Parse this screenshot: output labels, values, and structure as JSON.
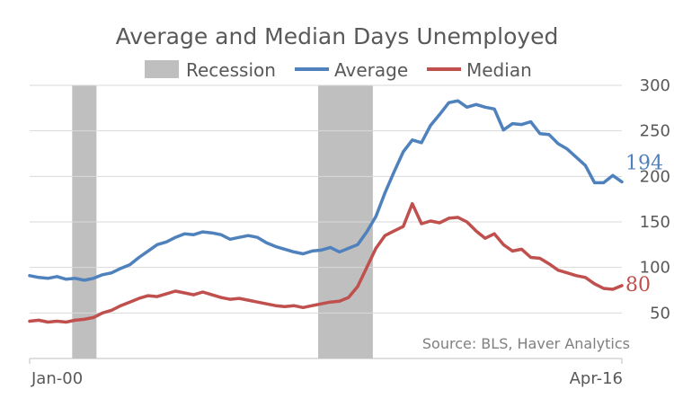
{
  "chart_data": {
    "type": "line",
    "title": "Average and Median Days Unemployed",
    "xlabel": "",
    "ylabel": "",
    "source": "Source: BLS, Haver Analytics",
    "x_range": [
      "2000-01",
      "2016-04"
    ],
    "x_tick_labels": [
      "Jan-00",
      "Apr-16"
    ],
    "ylim": [
      0,
      300
    ],
    "y_ticks": [
      "50",
      "100",
      "150",
      "200",
      "250",
      "300"
    ],
    "y_axis_position": "right",
    "grid": true,
    "legend": {
      "placement": "top",
      "entries": [
        "Recession",
        "Average",
        "Median"
      ]
    },
    "recessions": [
      {
        "start": "2001-03",
        "end": "2001-11"
      },
      {
        "start": "2007-12",
        "end": "2009-06"
      }
    ],
    "series": [
      {
        "name": "Average",
        "color": "#4f81bd",
        "end_label": "194",
        "points": [
          [
            "2000-01",
            91
          ],
          [
            "2000-04",
            89
          ],
          [
            "2000-07",
            88
          ],
          [
            "2000-10",
            90
          ],
          [
            "2001-01",
            87
          ],
          [
            "2001-04",
            88
          ],
          [
            "2001-07",
            86
          ],
          [
            "2001-10",
            88
          ],
          [
            "2002-01",
            92
          ],
          [
            "2002-04",
            94
          ],
          [
            "2002-07",
            99
          ],
          [
            "2002-10",
            103
          ],
          [
            "2003-01",
            111
          ],
          [
            "2003-04",
            118
          ],
          [
            "2003-07",
            125
          ],
          [
            "2003-10",
            128
          ],
          [
            "2004-01",
            133
          ],
          [
            "2004-04",
            137
          ],
          [
            "2004-07",
            136
          ],
          [
            "2004-10",
            139
          ],
          [
            "2005-01",
            138
          ],
          [
            "2005-04",
            136
          ],
          [
            "2005-07",
            131
          ],
          [
            "2005-10",
            133
          ],
          [
            "2006-01",
            135
          ],
          [
            "2006-04",
            133
          ],
          [
            "2006-07",
            127
          ],
          [
            "2006-10",
            123
          ],
          [
            "2007-01",
            120
          ],
          [
            "2007-04",
            117
          ],
          [
            "2007-07",
            115
          ],
          [
            "2007-10",
            118
          ],
          [
            "2008-01",
            119
          ],
          [
            "2008-04",
            122
          ],
          [
            "2008-07",
            117
          ],
          [
            "2008-10",
            121
          ],
          [
            "2009-01",
            125
          ],
          [
            "2009-04",
            139
          ],
          [
            "2009-07",
            156
          ],
          [
            "2009-10",
            182
          ],
          [
            "2010-01",
            205
          ],
          [
            "2010-04",
            227
          ],
          [
            "2010-07",
            240
          ],
          [
            "2010-10",
            237
          ],
          [
            "2011-01",
            256
          ],
          [
            "2011-04",
            268
          ],
          [
            "2011-07",
            281
          ],
          [
            "2011-10",
            283
          ],
          [
            "2012-01",
            276
          ],
          [
            "2012-04",
            279
          ],
          [
            "2012-07",
            276
          ],
          [
            "2012-10",
            274
          ],
          [
            "2013-01",
            251
          ],
          [
            "2013-04",
            258
          ],
          [
            "2013-07",
            257
          ],
          [
            "2013-10",
            260
          ],
          [
            "2014-01",
            247
          ],
          [
            "2014-04",
            246
          ],
          [
            "2014-07",
            236
          ],
          [
            "2014-10",
            230
          ],
          [
            "2015-01",
            221
          ],
          [
            "2015-04",
            212
          ],
          [
            "2015-07",
            193
          ],
          [
            "2015-10",
            193
          ],
          [
            "2016-01",
            201
          ],
          [
            "2016-04",
            194
          ]
        ]
      },
      {
        "name": "Median",
        "color": "#c0504d",
        "end_label": "80",
        "points": [
          [
            "2000-01",
            41
          ],
          [
            "2000-04",
            42
          ],
          [
            "2000-07",
            40
          ],
          [
            "2000-10",
            41
          ],
          [
            "2001-01",
            40
          ],
          [
            "2001-04",
            42
          ],
          [
            "2001-07",
            43
          ],
          [
            "2001-10",
            45
          ],
          [
            "2002-01",
            50
          ],
          [
            "2002-04",
            53
          ],
          [
            "2002-07",
            58
          ],
          [
            "2002-10",
            62
          ],
          [
            "2003-01",
            66
          ],
          [
            "2003-04",
            69
          ],
          [
            "2003-07",
            68
          ],
          [
            "2003-10",
            71
          ],
          [
            "2004-01",
            74
          ],
          [
            "2004-04",
            72
          ],
          [
            "2004-07",
            70
          ],
          [
            "2004-10",
            73
          ],
          [
            "2005-01",
            70
          ],
          [
            "2005-04",
            67
          ],
          [
            "2005-07",
            65
          ],
          [
            "2005-10",
            66
          ],
          [
            "2006-01",
            64
          ],
          [
            "2006-04",
            62
          ],
          [
            "2006-07",
            60
          ],
          [
            "2006-10",
            58
          ],
          [
            "2007-01",
            57
          ],
          [
            "2007-04",
            58
          ],
          [
            "2007-07",
            56
          ],
          [
            "2007-10",
            58
          ],
          [
            "2008-01",
            60
          ],
          [
            "2008-04",
            62
          ],
          [
            "2008-07",
            63
          ],
          [
            "2008-10",
            67
          ],
          [
            "2009-01",
            79
          ],
          [
            "2009-04",
            100
          ],
          [
            "2009-07",
            121
          ],
          [
            "2009-10",
            135
          ],
          [
            "2010-01",
            140
          ],
          [
            "2010-04",
            145
          ],
          [
            "2010-07",
            170
          ],
          [
            "2010-10",
            148
          ],
          [
            "2011-01",
            151
          ],
          [
            "2011-04",
            149
          ],
          [
            "2011-07",
            154
          ],
          [
            "2011-10",
            155
          ],
          [
            "2012-01",
            150
          ],
          [
            "2012-04",
            140
          ],
          [
            "2012-07",
            132
          ],
          [
            "2012-10",
            137
          ],
          [
            "2013-01",
            125
          ],
          [
            "2013-04",
            118
          ],
          [
            "2013-07",
            120
          ],
          [
            "2013-10",
            111
          ],
          [
            "2014-01",
            110
          ],
          [
            "2014-04",
            104
          ],
          [
            "2014-07",
            97
          ],
          [
            "2014-10",
            94
          ],
          [
            "2015-01",
            91
          ],
          [
            "2015-04",
            89
          ],
          [
            "2015-07",
            82
          ],
          [
            "2015-10",
            77
          ],
          [
            "2016-01",
            76
          ],
          [
            "2016-04",
            80
          ]
        ]
      }
    ]
  }
}
